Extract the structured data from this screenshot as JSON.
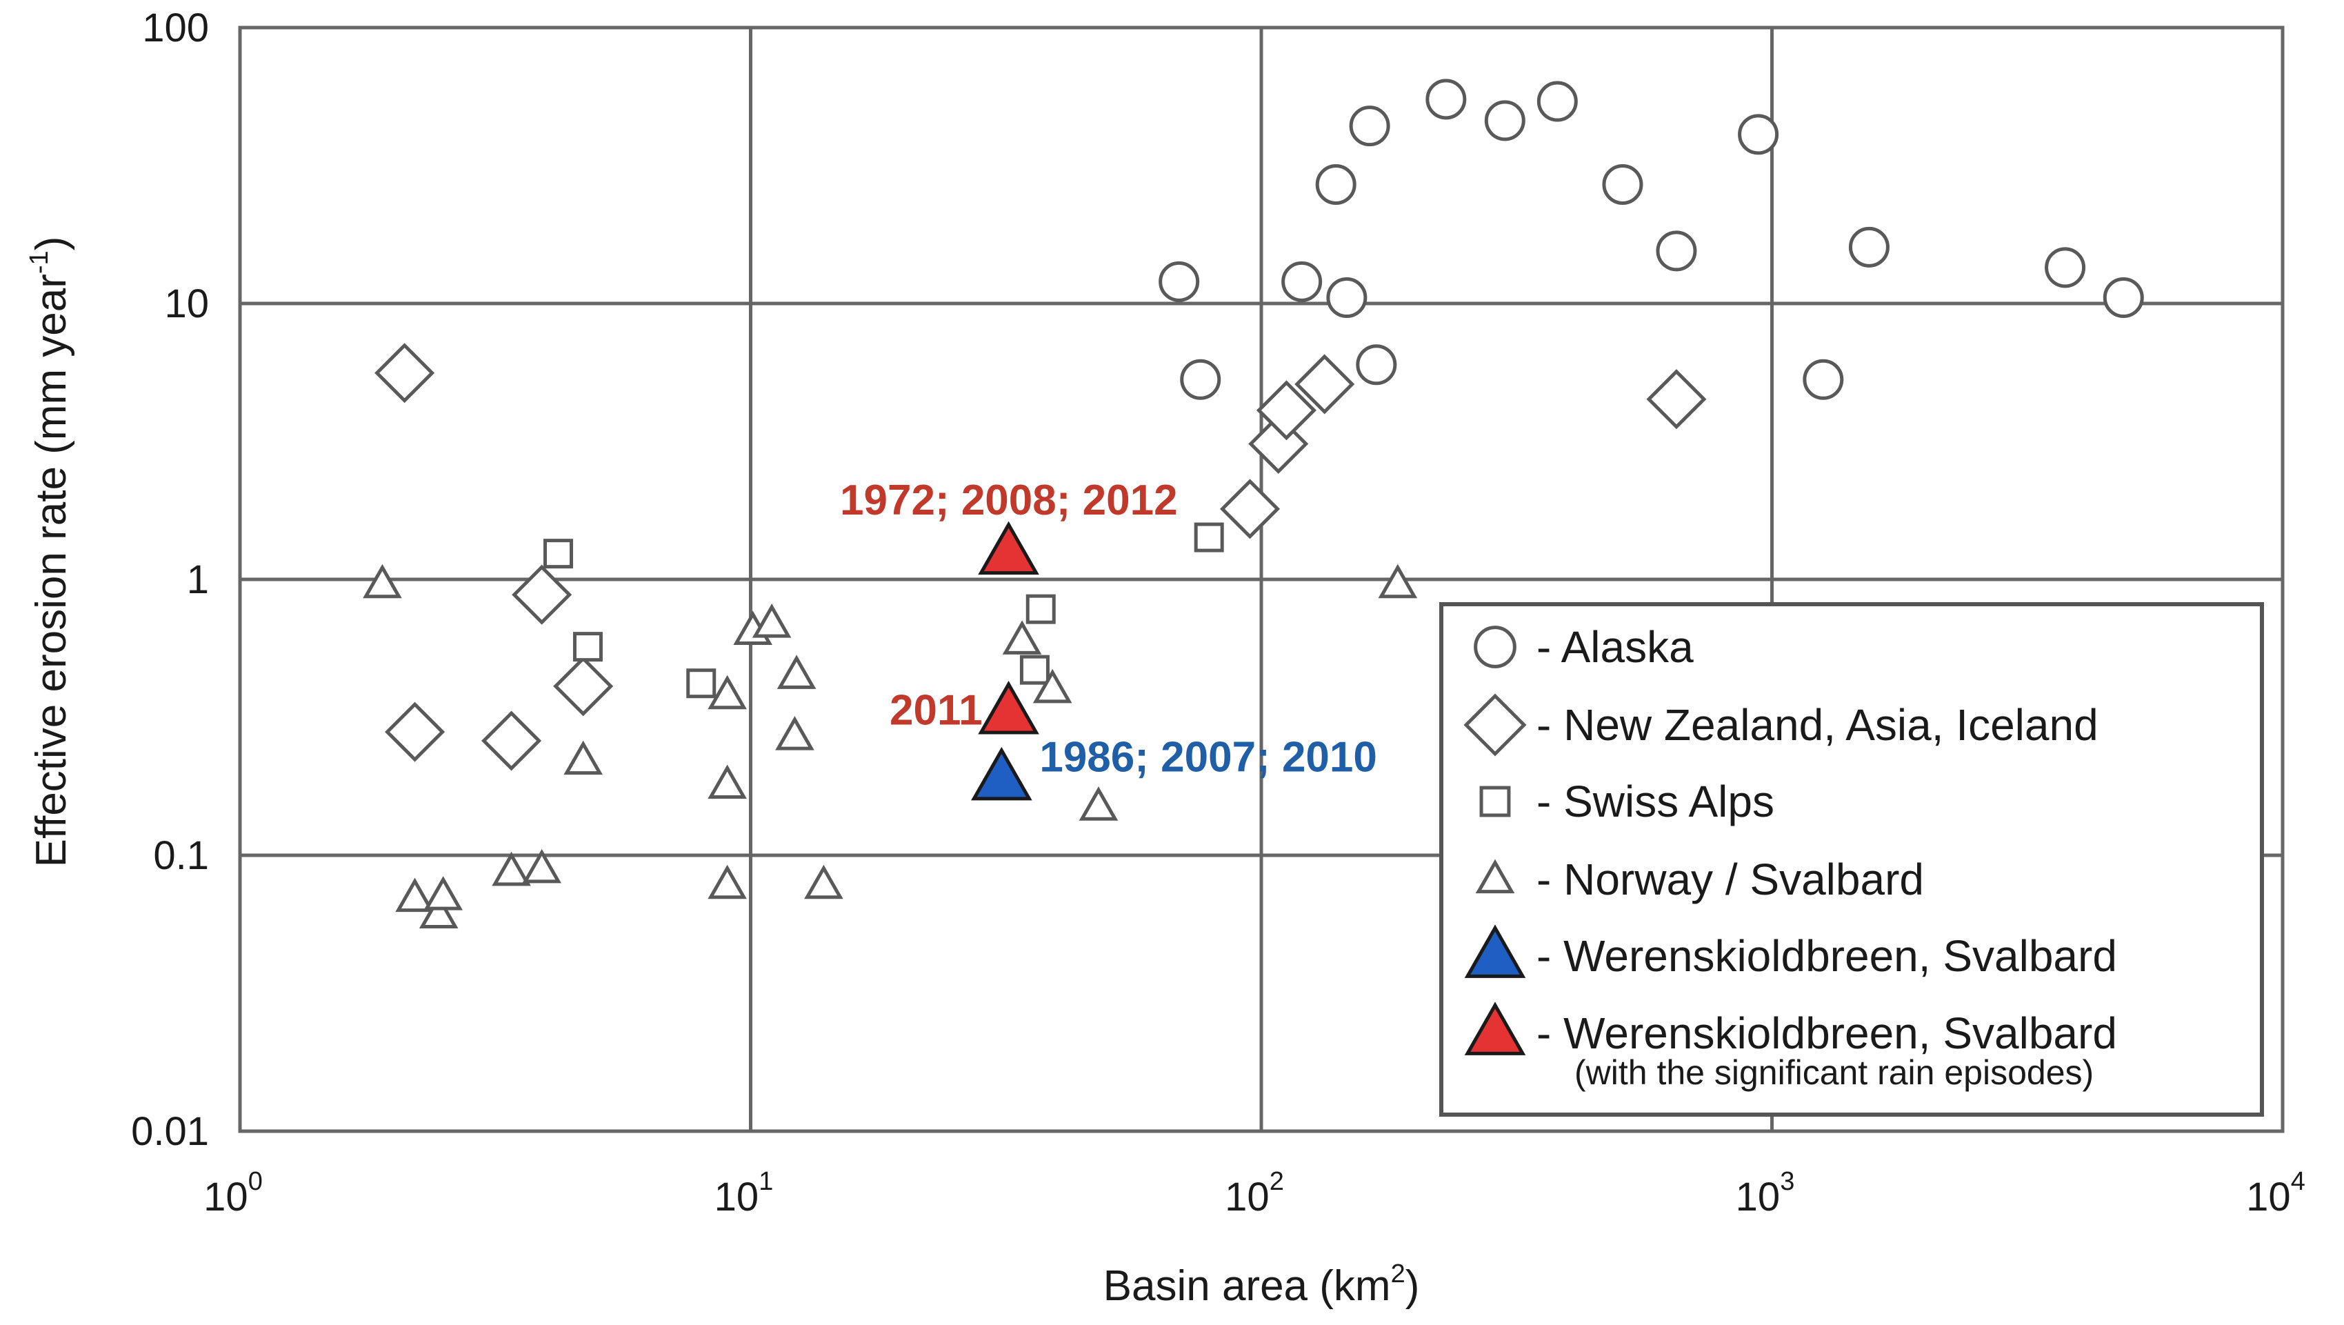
{
  "chart_data": {
    "type": "scatter",
    "xscale": "log",
    "yscale": "log",
    "xlim": [
      1,
      10000
    ],
    "ylim": [
      0.01,
      100
    ],
    "grid": true,
    "xlabel_text": "Basin area (km",
    "xlabel_sup": "2",
    "xlabel_close": ")",
    "ylabel_text": "Effective erosion rate (mm year",
    "ylabel_sup": "-1",
    "ylabel_close": ")",
    "x_ticks": [
      {
        "value": 1,
        "base": "10",
        "exp": "0"
      },
      {
        "value": 10,
        "base": "10",
        "exp": "1"
      },
      {
        "value": 100,
        "base": "10",
        "exp": "2"
      },
      {
        "value": 1000,
        "base": "10",
        "exp": "3"
      },
      {
        "value": 10000,
        "base": "10",
        "exp": "4"
      }
    ],
    "y_ticks": [
      {
        "value": 0.01,
        "label": "0.01"
      },
      {
        "value": 0.1,
        "label": "0.1"
      },
      {
        "value": 1,
        "label": "1"
      },
      {
        "value": 10,
        "label": "10"
      },
      {
        "value": 100,
        "label": "100"
      }
    ],
    "legend_position": "lower-right",
    "series": [
      {
        "name": "- Alaska",
        "marker": "circle",
        "color": "#595959",
        "fill": "#ffffff",
        "points": [
          [
            69,
            12
          ],
          [
            76,
            5.3
          ],
          [
            120,
            12
          ],
          [
            140,
            27
          ],
          [
            147,
            10.5
          ],
          [
            163,
            44
          ],
          [
            168,
            6
          ],
          [
            230,
            55
          ],
          [
            300,
            46
          ],
          [
            380,
            54
          ],
          [
            510,
            27
          ],
          [
            650,
            15.5
          ],
          [
            940,
            41
          ],
          [
            1260,
            5.3
          ],
          [
            1550,
            16
          ],
          [
            3750,
            13.5
          ],
          [
            4880,
            10.5
          ]
        ]
      },
      {
        "name": "- New Zealand, Asia, Iceland",
        "marker": "diamond",
        "color": "#595959",
        "fill": "#ffffff",
        "points": [
          [
            2.1,
            5.6
          ],
          [
            2.2,
            0.28
          ],
          [
            3.4,
            0.26
          ],
          [
            3.9,
            0.88
          ],
          [
            4.7,
            0.41
          ],
          [
            95,
            1.8
          ],
          [
            108,
            3.1
          ],
          [
            112,
            4.1
          ],
          [
            133,
            5.1
          ],
          [
            650,
            4.5
          ]
        ]
      },
      {
        "name": "- Swiss Alps",
        "marker": "square",
        "color": "#595959",
        "fill": "#ffffff",
        "points": [
          [
            4.2,
            1.24
          ],
          [
            4.8,
            0.57
          ],
          [
            8.0,
            0.42
          ],
          [
            36,
            0.47
          ],
          [
            37,
            0.78
          ],
          [
            79,
            1.42
          ]
        ]
      },
      {
        "name": "- Norway / Svalbard",
        "marker": "triangle",
        "color": "#595959",
        "fill": "#ffffff",
        "points": [
          [
            1.9,
            0.96
          ],
          [
            2.2,
            0.07
          ],
          [
            2.45,
            0.061
          ],
          [
            2.5,
            0.071
          ],
          [
            3.4,
            0.087
          ],
          [
            3.9,
            0.089
          ],
          [
            4.7,
            0.22
          ],
          [
            9.0,
            0.38
          ],
          [
            9.0,
            0.18
          ],
          [
            9.0,
            0.078
          ],
          [
            10.1,
            0.65
          ],
          [
            11.0,
            0.69
          ],
          [
            12.3,
            0.45
          ],
          [
            12.2,
            0.27
          ],
          [
            13.9,
            0.078
          ],
          [
            34,
            0.6
          ],
          [
            39,
            0.4
          ],
          [
            48,
            0.15
          ],
          [
            185,
            0.96
          ]
        ]
      },
      {
        "name": "- Werenskioldbreen, Svalbard",
        "marker": "triangle",
        "color": "#1a1a1a",
        "fill": "#1f5fc4",
        "points": [
          [
            31,
            0.19
          ]
        ]
      },
      {
        "name": "- Werenskioldbreen, Svalbard",
        "name_note": "(with the significant rain episodes)",
        "marker": "triangle",
        "color": "#1a1a1a",
        "fill": "#e53232",
        "points": [
          [
            32,
            1.25
          ],
          [
            32,
            0.33
          ]
        ]
      }
    ],
    "annotations": [
      {
        "text": "1972; 2008; 2012",
        "x": 32,
        "y": 1.25,
        "color": "#c0392b",
        "anchor": "above-left"
      },
      {
        "text": "2011",
        "x": 32,
        "y": 0.33,
        "color": "#c0392b",
        "anchor": "left"
      },
      {
        "text": "1986; 2007; 2010",
        "x": 31,
        "y": 0.19,
        "color": "#1f5fa8",
        "anchor": "right"
      }
    ]
  }
}
